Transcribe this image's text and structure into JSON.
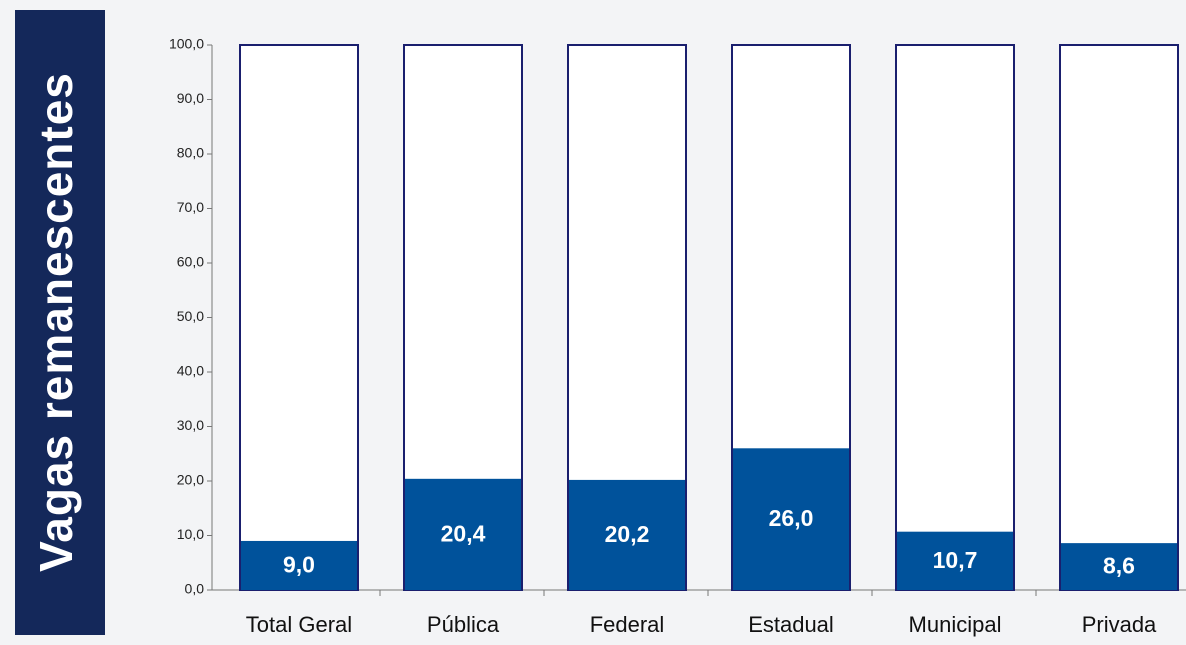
{
  "chart_data": {
    "type": "bar",
    "side_label": "Vagas remanescentes",
    "categories": [
      "Total Geral",
      "Pública",
      "Federal",
      "Estadual",
      "Municipal",
      "Privada"
    ],
    "values": [
      9.0,
      20.4,
      20.2,
      26.0,
      10.7,
      8.6
    ],
    "value_labels": [
      "9,0",
      "20,4",
      "20,2",
      "26,0",
      "10,7",
      "8,6"
    ],
    "color": "#00529b",
    "ylim": [
      0,
      100
    ],
    "yticks": [
      {
        "value": 0,
        "label": "0,0"
      },
      {
        "value": 10,
        "label": "10,0"
      },
      {
        "value": 20,
        "label": "20,0"
      },
      {
        "value": 30,
        "label": "30,0"
      },
      {
        "value": 40,
        "label": "40,0"
      },
      {
        "value": 50,
        "label": "50,0"
      },
      {
        "value": 60,
        "label": "60,0"
      },
      {
        "value": 70,
        "label": "70,0"
      },
      {
        "value": 80,
        "label": "80,0"
      },
      {
        "value": 90,
        "label": "90,0"
      },
      {
        "value": 100,
        "label": "100,0"
      }
    ],
    "grid": false
  }
}
